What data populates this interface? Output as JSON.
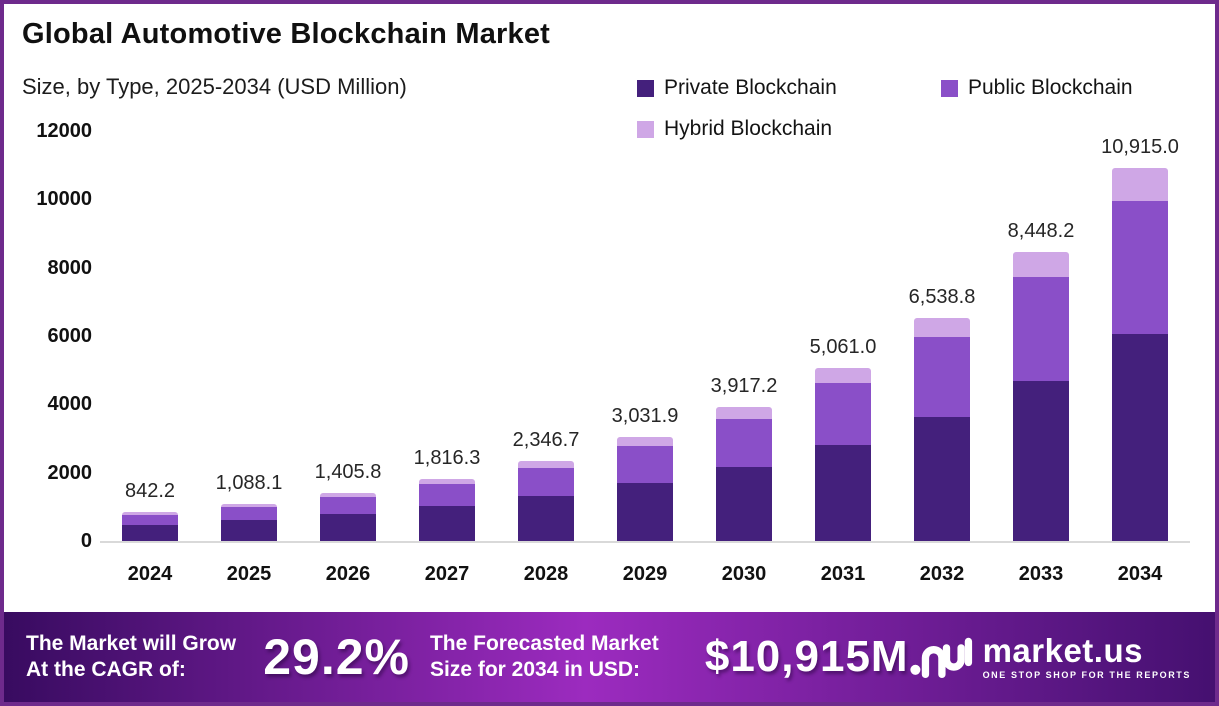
{
  "header": {
    "title": "Global Automotive Blockchain Market",
    "subtitle": "Size, by Type, 2025-2034 (USD Million)"
  },
  "legend": [
    {
      "label": "Private Blockchain",
      "color": "#44207c"
    },
    {
      "label": "Public Blockchain",
      "color": "#8a4fc8"
    },
    {
      "label": "Hybrid Blockchain",
      "color": "#cfa7e6"
    }
  ],
  "chart_data": {
    "type": "bar",
    "stacked": true,
    "title": "Global Automotive Blockchain Market",
    "subtitle": "Size, by Type, 2025-2034 (USD Million)",
    "categories": [
      "2024",
      "2025",
      "2026",
      "2027",
      "2028",
      "2029",
      "2030",
      "2031",
      "2032",
      "2033",
      "2034"
    ],
    "totals": [
      842.2,
      1088.1,
      1405.8,
      1816.3,
      2346.7,
      3031.9,
      3917.2,
      5061.0,
      6538.8,
      8448.2,
      10915.0
    ],
    "total_labels": [
      "842.2",
      "1,088.1",
      "1,405.8",
      "1,816.3",
      "2,346.7",
      "3,031.9",
      "3,917.2",
      "5,061.0",
      "6,538.8",
      "8,448.2",
      "10,915.0"
    ],
    "series": [
      {
        "name": "Private Blockchain",
        "color": "#44207c",
        "values": [
          468.3,
          605.0,
          781.6,
          1009.9,
          1304.8,
          1685.7,
          2178.0,
          2813.9,
          3635.6,
          4697.2,
          6068.8
        ]
      },
      {
        "name": "Public Blockchain",
        "color": "#8a4fc8",
        "values": [
          300.7,
          388.5,
          501.9,
          648.4,
          837.8,
          1082.4,
          1398.4,
          1806.8,
          2334.4,
          3016.0,
          3896.7
        ]
      },
      {
        "name": "Hybrid Blockchain",
        "color": "#cfa7e6",
        "values": [
          73.2,
          94.6,
          122.3,
          158.0,
          204.1,
          263.8,
          340.8,
          440.3,
          568.8,
          735.0,
          949.5
        ]
      }
    ],
    "xlabel": "",
    "ylabel": "",
    "ylim": [
      0,
      12000
    ],
    "yticks": [
      0,
      2000,
      4000,
      6000,
      8000,
      10000,
      12000
    ],
    "legend_position": "top-right",
    "grid": false
  },
  "footer": {
    "cagr_label": "The Market will Grow At the CAGR of:",
    "cagr_value": "29.2%",
    "forecast_label": "The Forecasted Market Size for 2034 in USD:",
    "forecast_value": "$10,915M",
    "brand": {
      "name": "market.us",
      "tagline": "ONE STOP SHOP FOR THE REPORTS"
    }
  },
  "colors": {
    "border": "#6e2a8c",
    "axis_line": "#d9d9d9",
    "banner_gradient": [
      "#380b60",
      "#9c2bbf",
      "#451070"
    ]
  }
}
